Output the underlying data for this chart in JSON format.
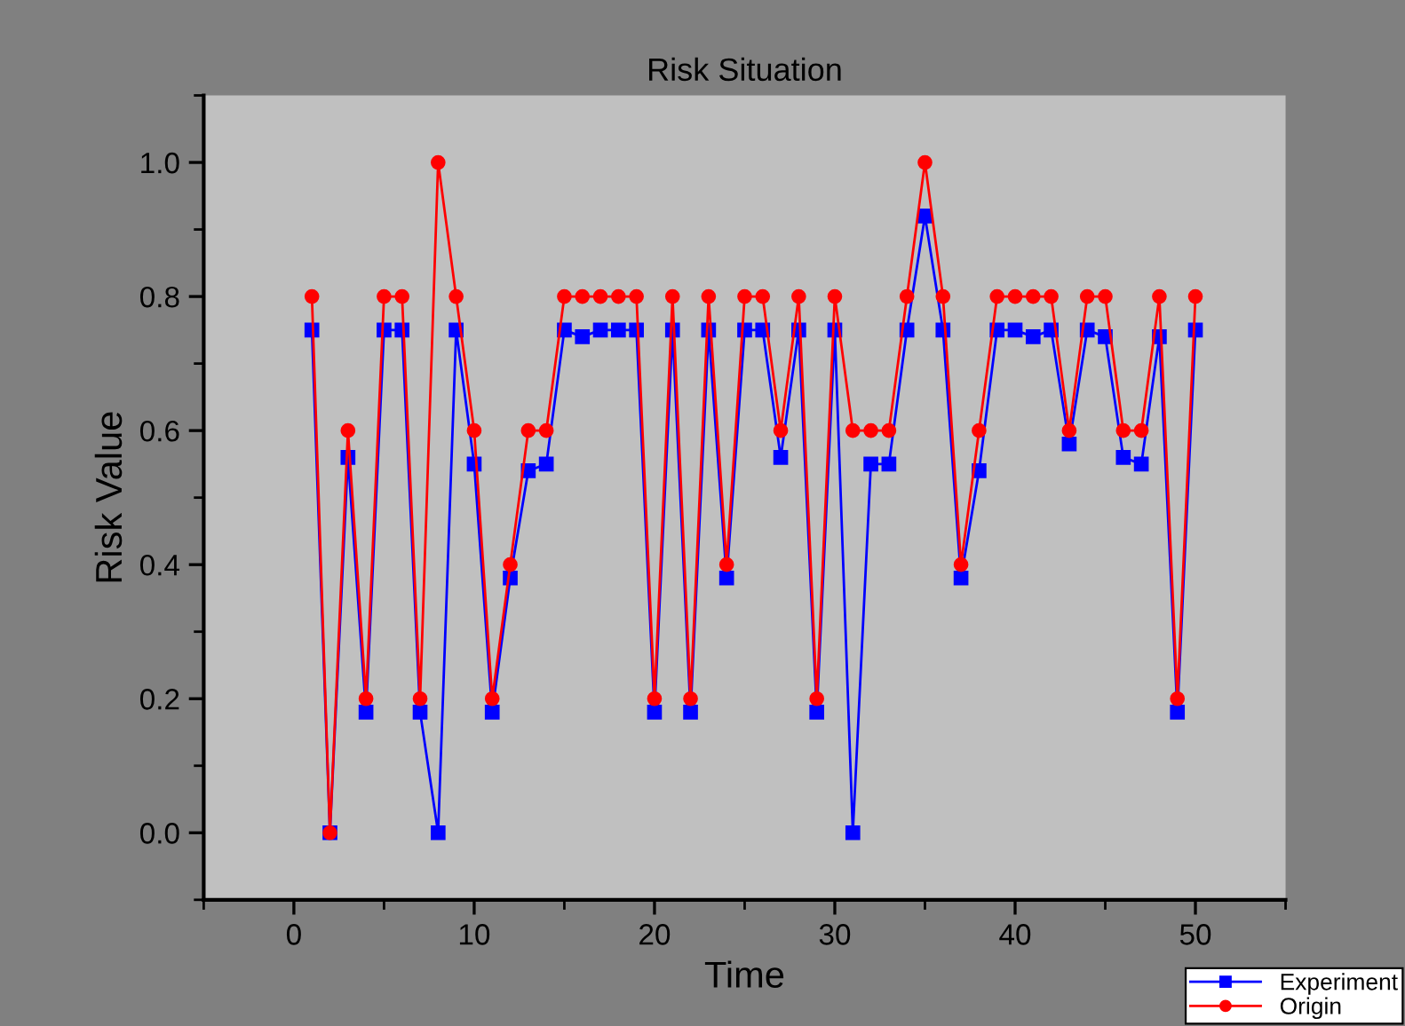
{
  "chart_data": {
    "type": "line",
    "title": "Risk Situation",
    "xlabel": "Time",
    "ylabel": "Risk Value",
    "x": [
      1,
      2,
      3,
      4,
      5,
      6,
      7,
      8,
      9,
      10,
      11,
      12,
      13,
      14,
      15,
      16,
      17,
      18,
      19,
      20,
      21,
      22,
      23,
      24,
      25,
      26,
      27,
      28,
      29,
      30,
      31,
      32,
      33,
      34,
      35,
      36,
      37,
      38,
      39,
      40,
      41,
      42,
      43,
      44,
      45,
      46,
      47,
      48,
      49,
      50
    ],
    "series": [
      {
        "name": "Experiment",
        "color": "#0000ff",
        "marker": "square",
        "values": [
          0.75,
          0,
          0.56,
          0.18,
          0.75,
          0.75,
          0.18,
          0,
          0.75,
          0.55,
          0.18,
          0.38,
          0.54,
          0.55,
          0.75,
          0.74,
          0.75,
          0.75,
          0.75,
          0.18,
          0.75,
          0.18,
          0.75,
          0.38,
          0.75,
          0.75,
          0.56,
          0.75,
          0.18,
          0.75,
          0,
          0.55,
          0.55,
          0.75,
          0.92,
          0.75,
          0.38,
          0.54,
          0.75,
          0.75,
          0.74,
          0.75,
          0.58,
          0.75,
          0.74,
          0.56,
          0.55,
          0.74,
          0.18,
          0.75
        ]
      },
      {
        "name": "Origin",
        "color": "#ff0000",
        "marker": "circle",
        "values": [
          0.8,
          0,
          0.6,
          0.2,
          0.8,
          0.8,
          0.2,
          1.0,
          0.8,
          0.6,
          0.2,
          0.4,
          0.6,
          0.6,
          0.8,
          0.8,
          0.8,
          0.8,
          0.8,
          0.2,
          0.8,
          0.2,
          0.8,
          0.4,
          0.8,
          0.8,
          0.6,
          0.8,
          0.2,
          0.8,
          0.6,
          0.6,
          0.6,
          0.8,
          1.0,
          0.8,
          0.4,
          0.6,
          0.8,
          0.8,
          0.8,
          0.8,
          0.6,
          0.8,
          0.8,
          0.6,
          0.6,
          0.8,
          0.2,
          0.8
        ]
      }
    ],
    "xlim": [
      -5,
      55
    ],
    "xticks": [
      0,
      10,
      20,
      30,
      40,
      50
    ],
    "ylim": [
      -0.1,
      1.1
    ],
    "yticks": [
      {
        "value": 0,
        "label": "0.0"
      },
      0.2,
      0.4,
      0.6,
      0.8,
      {
        "value": 1,
        "label": "1.0"
      }
    ],
    "grid": false,
    "legend": "bottom right",
    "line_style": "solid"
  }
}
